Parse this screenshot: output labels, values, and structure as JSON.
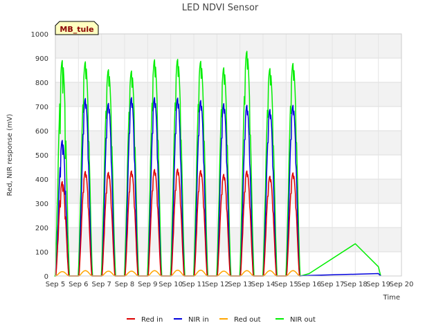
{
  "chart_data": {
    "type": "line",
    "title": "LED NDVI Sensor",
    "xlabel": "Time",
    "ylabel": "Red, NIR response (mV)",
    "tag": "MB_tule",
    "ylim": [
      0,
      1000
    ],
    "yticks": [
      "0",
      "100",
      "200",
      "300",
      "400",
      "500",
      "600",
      "700",
      "800",
      "900",
      "1000"
    ],
    "xlim": [
      5,
      20
    ],
    "xticks": [
      {
        "value": 5,
        "label": "Sep 5"
      },
      {
        "value": 6,
        "label": "Sep 6"
      },
      {
        "value": 7,
        "label": "Sep 7"
      },
      {
        "value": 8,
        "label": "Sep 8"
      },
      {
        "value": 9,
        "label": "Sep 9"
      },
      {
        "value": 10,
        "label": "Sep 10"
      },
      {
        "value": 11,
        "label": "Sep 11"
      },
      {
        "value": 12,
        "label": "Sep 12"
      },
      {
        "value": 13,
        "label": "Sep 13"
      },
      {
        "value": 14,
        "label": "Sep 14"
      },
      {
        "value": 15,
        "label": "Sep 15"
      },
      {
        "value": 16,
        "label": "Sep 16"
      },
      {
        "value": 17,
        "label": "Sep 17"
      },
      {
        "value": 18,
        "label": "Sep 18"
      },
      {
        "value": 19,
        "label": "Sep 19"
      },
      {
        "value": 20,
        "label": "Sep 20"
      }
    ],
    "grid": true,
    "legend_position": "bottom",
    "days": [
      {
        "day": 5.3,
        "red": 390,
        "nir": 560,
        "red_out": 18,
        "nir_out": 890
      },
      {
        "day": 6.3,
        "red": 432,
        "nir": 733,
        "red_out": 22,
        "nir_out": 885
      },
      {
        "day": 7.3,
        "red": 428,
        "nir": 713,
        "red_out": 20,
        "nir_out": 852
      },
      {
        "day": 8.3,
        "red": 434,
        "nir": 737,
        "red_out": 20,
        "nir_out": 847
      },
      {
        "day": 9.3,
        "red": 440,
        "nir": 737,
        "red_out": 22,
        "nir_out": 893
      },
      {
        "day": 10.3,
        "red": 442,
        "nir": 735,
        "red_out": 24,
        "nir_out": 895
      },
      {
        "day": 11.3,
        "red": 436,
        "nir": 725,
        "red_out": 24,
        "nir_out": 887
      },
      {
        "day": 12.3,
        "red": 420,
        "nir": 712,
        "red_out": 20,
        "nir_out": 860
      },
      {
        "day": 13.3,
        "red": 434,
        "nir": 705,
        "red_out": 22,
        "nir_out": 928
      },
      {
        "day": 14.3,
        "red": 412,
        "nir": 688,
        "red_out": 22,
        "nir_out": 857
      },
      {
        "day": 15.3,
        "red": 426,
        "nir": 705,
        "red_out": 22,
        "nir_out": 878
      }
    ],
    "tail": {
      "nir_out": [
        [
          16.0,
          10
        ],
        [
          18.0,
          133
        ],
        [
          19.0,
          38
        ],
        [
          19.1,
          0
        ]
      ],
      "nir": [
        [
          16.0,
          2
        ],
        [
          19.0,
          10
        ],
        [
          19.1,
          0
        ]
      ]
    },
    "series": [
      {
        "name": "Red in",
        "key": "red",
        "color": "#dd0000"
      },
      {
        "name": "NIR in",
        "key": "nir",
        "color": "#0000dd"
      },
      {
        "name": "Red out",
        "key": "red_out",
        "color": "#ffa500"
      },
      {
        "name": "NIR out",
        "key": "nir_out",
        "color": "#00ee00"
      }
    ]
  }
}
